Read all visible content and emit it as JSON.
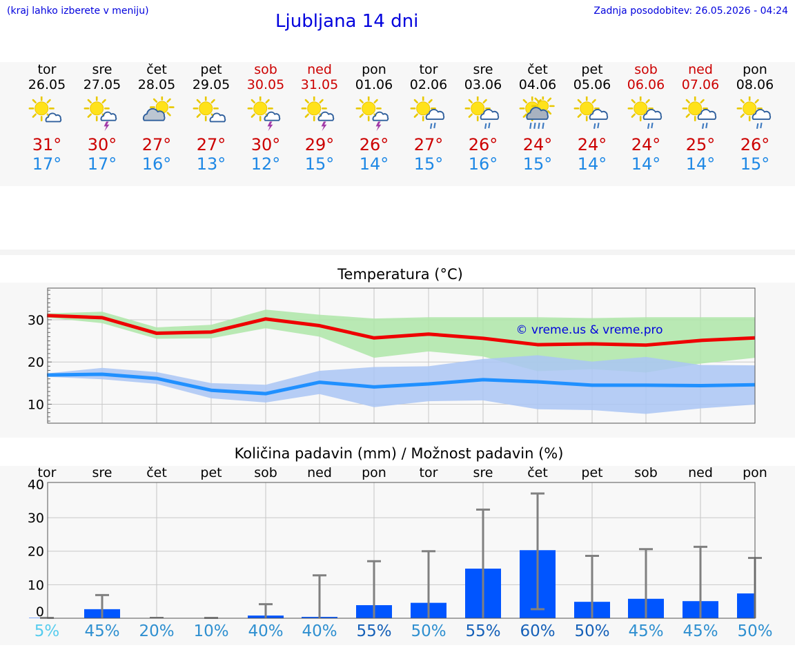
{
  "header": {
    "hint": "(kraj lahko izberete v meniju)",
    "title": "Ljubljana 14 dni",
    "updated": "Zadnja posodobitev: 26.05.2026 - 04:24"
  },
  "days": [
    {
      "name": "tor",
      "date": "26.05",
      "weekend": false,
      "icon": "partly-cloudy-icon",
      "tmax": "31°",
      "tmin": "17°"
    },
    {
      "name": "sre",
      "date": "27.05",
      "weekend": false,
      "icon": "thunderstorm-sun-icon",
      "tmax": "30°",
      "tmin": "17°"
    },
    {
      "name": "čet",
      "date": "28.05",
      "weekend": false,
      "icon": "mostly-cloudy-icon",
      "tmax": "27°",
      "tmin": "16°"
    },
    {
      "name": "pet",
      "date": "29.05",
      "weekend": false,
      "icon": "partly-cloudy-icon",
      "tmax": "27°",
      "tmin": "13°"
    },
    {
      "name": "sob",
      "date": "30.05",
      "weekend": true,
      "icon": "thunderstorm-sun-icon",
      "tmax": "30°",
      "tmin": "12°"
    },
    {
      "name": "ned",
      "date": "31.05",
      "weekend": true,
      "icon": "thunderstorm-sun-icon",
      "tmax": "29°",
      "tmin": "15°"
    },
    {
      "name": "pon",
      "date": "01.06",
      "weekend": false,
      "icon": "thunderstorm-sun-icon",
      "tmax": "26°",
      "tmin": "14°"
    },
    {
      "name": "tor",
      "date": "02.06",
      "weekend": false,
      "icon": "rain-sun-icon",
      "tmax": "27°",
      "tmin": "15°"
    },
    {
      "name": "sre",
      "date": "03.06",
      "weekend": false,
      "icon": "rain-sun-icon",
      "tmax": "26°",
      "tmin": "16°"
    },
    {
      "name": "čet",
      "date": "04.06",
      "weekend": false,
      "icon": "heavy-rain-sun-icon",
      "tmax": "24°",
      "tmin": "15°"
    },
    {
      "name": "pet",
      "date": "05.06",
      "weekend": false,
      "icon": "rain-sun-icon",
      "tmax": "24°",
      "tmin": "14°"
    },
    {
      "name": "sob",
      "date": "06.06",
      "weekend": true,
      "icon": "rain-sun-icon",
      "tmax": "24°",
      "tmin": "14°"
    },
    {
      "name": "ned",
      "date": "07.06",
      "weekend": true,
      "icon": "rain-sun-icon",
      "tmax": "25°",
      "tmin": "14°"
    },
    {
      "name": "pon",
      "date": "08.06",
      "weekend": false,
      "icon": "rain-sun-icon",
      "tmax": "26°",
      "tmin": "15°"
    }
  ],
  "chart_data": [
    {
      "type": "line",
      "title": "Temperatura (°C)",
      "ylim": [
        5.5,
        37.5
      ],
      "yticks": [
        10,
        20,
        30
      ],
      "grid": true,
      "watermark": "© vreme.us & vreme.pro",
      "series": [
        {
          "values": [
            31.0,
            30.5,
            26.8,
            27.1,
            30.2,
            28.6,
            25.7,
            26.6,
            25.6,
            24.1,
            24.3,
            24.0,
            25.1,
            25.7
          ],
          "band_low": [
            30.5,
            29.2,
            25.5,
            25.6,
            28.0,
            26.0,
            21.0,
            22.5,
            21.3,
            17.8,
            18.3,
            17.5,
            19.6,
            21.0
          ],
          "band_high": [
            31.5,
            31.9,
            28.2,
            28.8,
            32.4,
            31.2,
            30.3,
            30.6,
            30.6,
            30.6,
            30.4,
            30.6,
            30.6,
            30.6
          ],
          "color": "#ee0000",
          "band_color": "#aee6a8"
        },
        {
          "values": [
            16.9,
            17.1,
            16.1,
            13.3,
            12.5,
            15.2,
            14.1,
            14.8,
            15.8,
            15.3,
            14.5,
            14.5,
            14.4,
            14.6
          ],
          "band_low": [
            16.5,
            15.9,
            14.8,
            11.4,
            10.4,
            12.4,
            9.3,
            10.7,
            10.9,
            8.8,
            8.6,
            7.7,
            9.0,
            9.9
          ],
          "band_high": [
            17.3,
            18.6,
            17.6,
            15.0,
            14.6,
            17.9,
            18.8,
            19.0,
            20.7,
            21.6,
            20.1,
            21.2,
            19.3,
            19.2
          ],
          "color": "#2090ff",
          "band_color": "#aac6f4"
        }
      ]
    },
    {
      "type": "bar",
      "title": "Količina padavin (mm) / Možnost padavin (%)",
      "categories": [
        "tor",
        "sre",
        "čet",
        "pet",
        "sob",
        "ned",
        "pon",
        "tor",
        "sre",
        "čet",
        "pet",
        "sob",
        "ned",
        "pon"
      ],
      "ylim": [
        0,
        40
      ],
      "yticks": [
        0,
        10,
        20,
        30,
        40
      ],
      "values": [
        0.1,
        2.7,
        0,
        0,
        0.8,
        0.4,
        3.9,
        4.6,
        14.8,
        20.3,
        4.9,
        5.8,
        5.1,
        7.4
      ],
      "err_low": [
        0,
        0,
        0,
        0,
        0,
        0,
        0,
        0,
        0,
        2.7,
        0,
        0,
        0,
        0
      ],
      "err_high": [
        0.1,
        6.9,
        0,
        0.1,
        4.2,
        12.8,
        17.0,
        20.0,
        32.4,
        37.2,
        18.6,
        20.6,
        21.3,
        18.0
      ],
      "bar_color": "#0055ff",
      "chance": [
        "5%",
        "45%",
        "20%",
        "10%",
        "40%",
        "40%",
        "55%",
        "50%",
        "55%",
        "60%",
        "50%",
        "45%",
        "45%",
        "50%"
      ],
      "chance_colors": [
        "#56ccee",
        "#2e8fd0",
        "#2e8fd0",
        "#2e8fd0",
        "#2e8fd0",
        "#2e8fd0",
        "#1560b8",
        "#2e8fd0",
        "#1560b8",
        "#1560b8",
        "#1560b8",
        "#2e8fd0",
        "#2e8fd0",
        "#2e8fd0"
      ]
    }
  ]
}
